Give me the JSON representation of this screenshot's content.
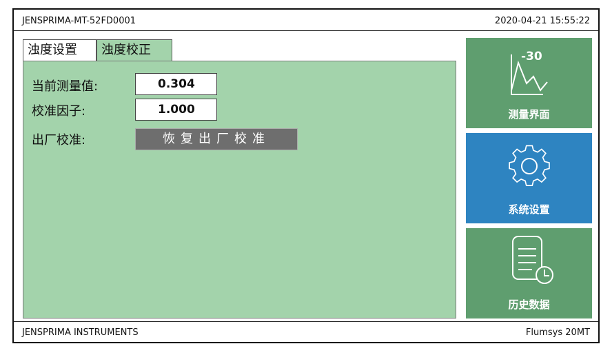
{
  "header": {
    "device_id": "JENSPRIMA-MT-52FD0001",
    "datetime": "2020-04-21 15:55:22"
  },
  "tabs": [
    "浊度设置",
    "浊度校正"
  ],
  "form": {
    "rows": [
      {
        "label": "当前测量值:",
        "value": "0.304"
      },
      {
        "label": "校准因子:",
        "value": "1.000"
      }
    ],
    "factory": {
      "label": "出厂校准:",
      "button": "恢复出厂校准"
    }
  },
  "nav": [
    {
      "label": "测量界面",
      "icon_text": "-30"
    },
    {
      "label": "系统设置"
    },
    {
      "label": "历史数据"
    }
  ],
  "footer": {
    "left": "JENSPRIMA INSTRUMENTS",
    "right": "Flumsys 20MT"
  }
}
